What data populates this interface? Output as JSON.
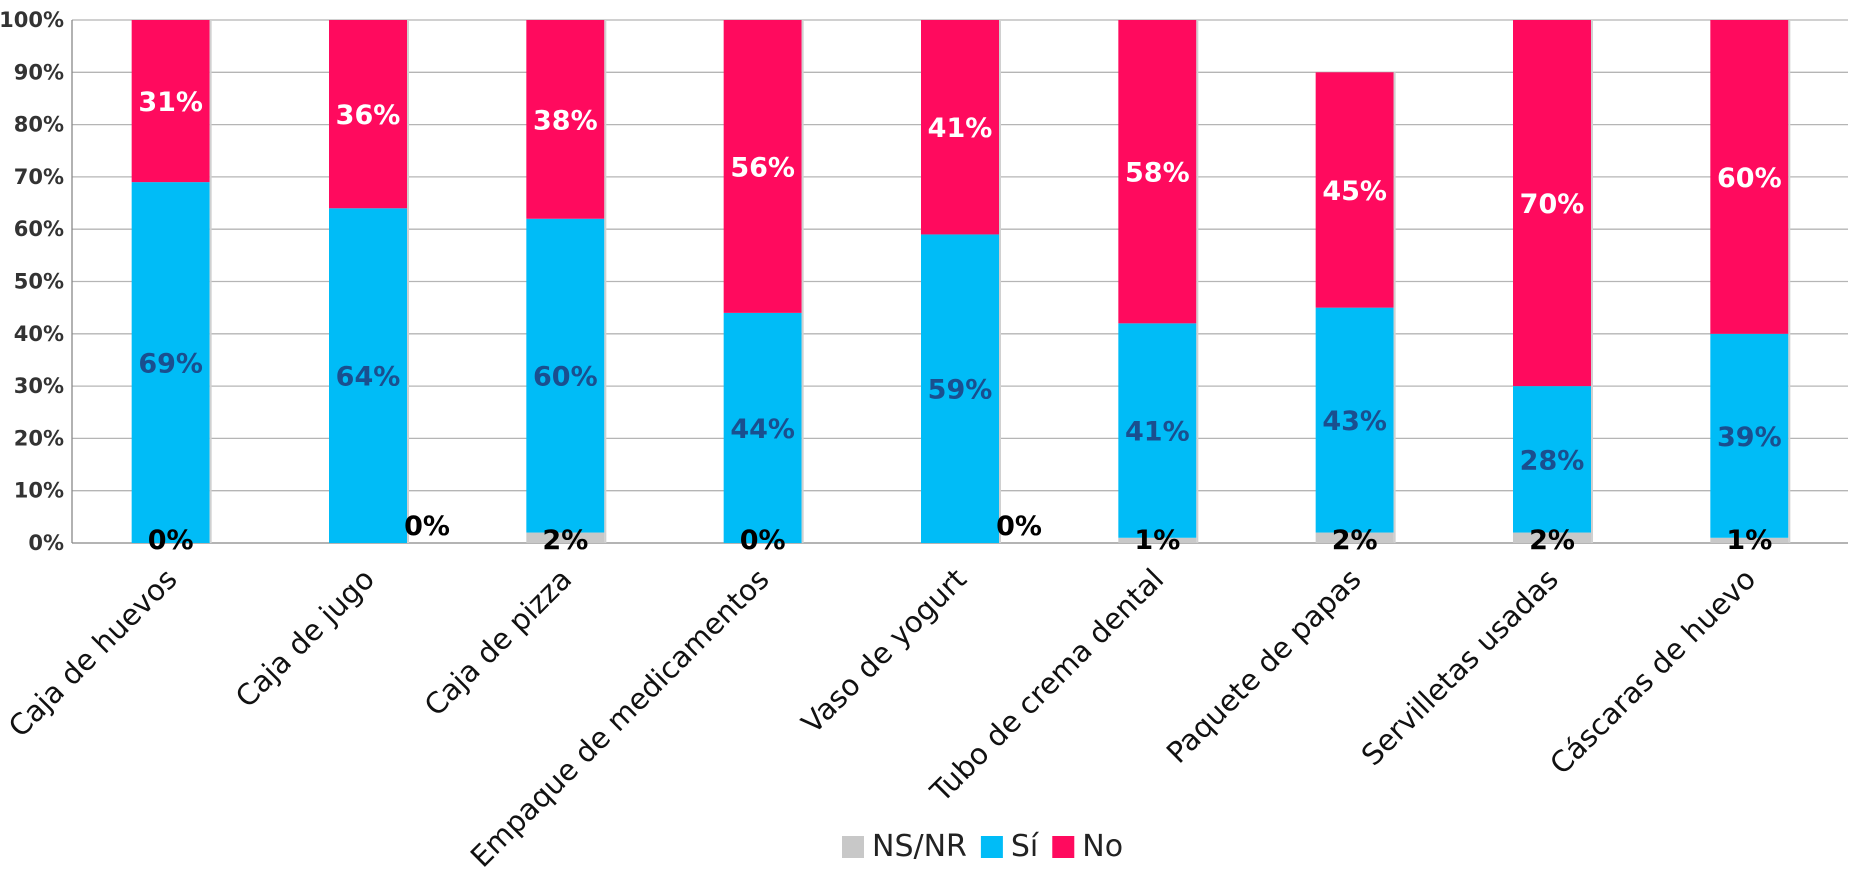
{
  "chart_data": {
    "type": "bar",
    "stacked": true,
    "percent_stacked": true,
    "categories": [
      "Caja de huevos",
      "Caja de jugo",
      "Caja de pizza",
      "Empaque de medicamentos",
      "Vaso de yogurt",
      "Tubo de crema dental",
      "Paquete de papas",
      "Servilletas usadas",
      "Cáscaras de huevo"
    ],
    "series": [
      {
        "name": "NS/NR",
        "values": [
          0,
          0,
          2,
          0,
          0,
          1,
          2,
          2,
          1
        ],
        "labels": [
          "0%",
          "0%",
          "2%",
          "0%",
          "0%",
          "1%",
          "2%",
          "2%",
          "1%"
        ],
        "color": "#c8c8c8",
        "label_color": "#000000"
      },
      {
        "name": "Sí",
        "values": [
          69,
          64,
          60,
          44,
          59,
          41,
          43,
          28,
          39
        ],
        "labels": [
          "69%",
          "64%",
          "60%",
          "44%",
          "59%",
          "41%",
          "43%",
          "28%",
          "39%"
        ],
        "color": "#00bcf7",
        "label_color": "#1a4f8f"
      },
      {
        "name": "No",
        "values": [
          31,
          36,
          38,
          56,
          41,
          58,
          45,
          70,
          60
        ],
        "labels": [
          "31%",
          "36%",
          "38%",
          "56%",
          "41%",
          "58%",
          "45%",
          "70%",
          "60%"
        ],
        "color": "#ff0a5e",
        "label_color": "#ffffff"
      }
    ],
    "y_ticks": [
      "0%",
      "10%",
      "20%",
      "30%",
      "40%",
      "50%",
      "60%",
      "70%",
      "80%",
      "90%",
      "100%"
    ],
    "ylim": [
      0,
      100
    ],
    "grid": true,
    "legend_position": "bottom-center"
  }
}
